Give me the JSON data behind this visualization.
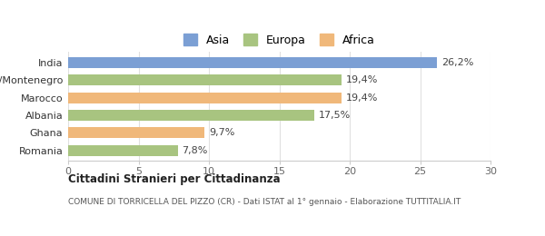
{
  "categories": [
    "Romania",
    "Ghana",
    "Albania",
    "Marocco",
    "Serbia/Montenegro",
    "India"
  ],
  "values": [
    7.8,
    9.7,
    17.5,
    19.4,
    19.4,
    26.2
  ],
  "colors": [
    "#a8c480",
    "#f0b87a",
    "#a8c480",
    "#f0b87a",
    "#a8c480",
    "#7b9fd4"
  ],
  "labels": [
    "7,8%",
    "9,7%",
    "17,5%",
    "19,4%",
    "19,4%",
    "26,2%"
  ],
  "legend": [
    {
      "label": "Asia",
      "color": "#7b9fd4"
    },
    {
      "label": "Europa",
      "color": "#a8c480"
    },
    {
      "label": "Africa",
      "color": "#f0b87a"
    }
  ],
  "xlim": [
    0,
    30
  ],
  "xticks": [
    0,
    5,
    10,
    15,
    20,
    25,
    30
  ],
  "title_bold": "Cittadini Stranieri per Cittadinanza",
  "subtitle": "COMUNE DI TORRICELLA DEL PIZZO (CR) - Dati ISTAT al 1° gennaio - Elaborazione TUTTITALIA.IT",
  "background_color": "#ffffff",
  "bar_height": 0.62
}
